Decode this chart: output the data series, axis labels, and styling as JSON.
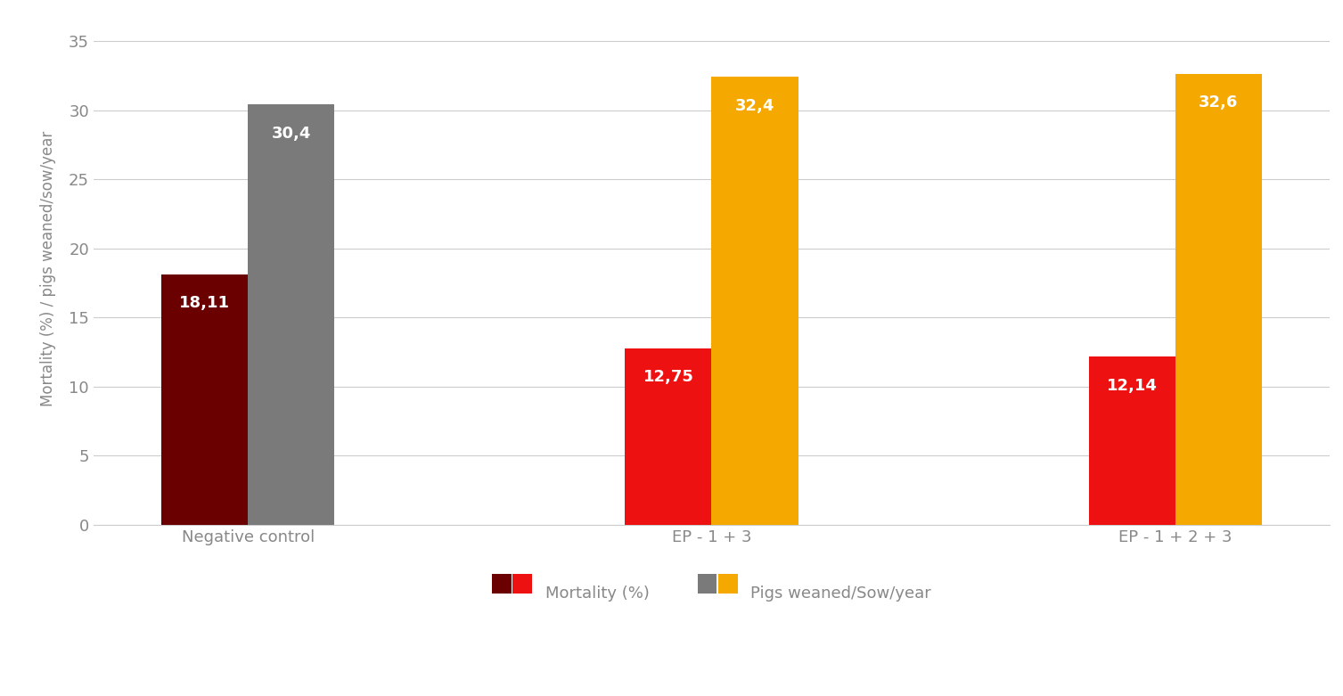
{
  "groups": [
    "Negative control",
    "EP - 1 + 3",
    "EP - 1 + 2 + 3"
  ],
  "mortality_values": [
    18.11,
    12.75,
    12.14
  ],
  "weaned_values": [
    30.4,
    32.4,
    32.6
  ],
  "mortality_colors": [
    "#6b0000",
    "#ee1111",
    "#ee1111"
  ],
  "weaned_colors": [
    "#7a7a7a",
    "#f5a800",
    "#f5a800"
  ],
  "mortality_labels": [
    "18,11",
    "12,75",
    "12,14"
  ],
  "weaned_labels": [
    "30,4",
    "32,4",
    "32,6"
  ],
  "ylabel": "Mortality (%) / pigs weaned/sow/year",
  "ylim": [
    0,
    37
  ],
  "yticks": [
    0,
    5,
    10,
    15,
    20,
    25,
    30,
    35
  ],
  "background_color": "#ffffff",
  "grid_color": "#cccccc",
  "legend_mortality_label": "Mortality (%)",
  "legend_weaned_label": "Pigs weaned/Sow/year",
  "bar_width": 0.28,
  "label_fontsize": 13,
  "tick_fontsize": 13,
  "ylabel_fontsize": 12,
  "legend_fontsize": 13,
  "group_centers": [
    0.5,
    2.0,
    3.5
  ],
  "bar_gap": 0.0
}
